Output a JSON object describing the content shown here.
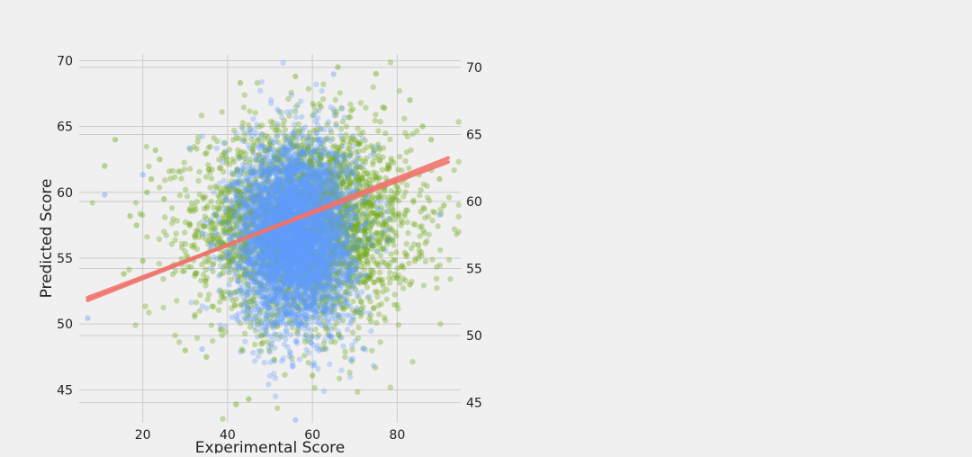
{
  "chart_data": {
    "type": "scatter",
    "title": "",
    "xlabel": "Experimental Score",
    "ylabel": "Predicted Score",
    "xlim": [
      5,
      95
    ],
    "ylim_left": [
      42.5,
      70.5
    ],
    "ylim_right": [
      43.5,
      71.0
    ],
    "x_ticks": [
      20,
      40,
      60,
      80
    ],
    "y_ticks_left": [
      45,
      50,
      55,
      60,
      65,
      70
    ],
    "y_ticks_right": [
      45,
      50,
      55,
      60,
      65,
      70
    ],
    "grid": true,
    "legend": "none",
    "series": [
      {
        "color": "#71a819",
        "opacity": 0.35,
        "axis": "left",
        "cloud": {
          "x_mean": 58,
          "x_sd": 13,
          "y_mean": 57.5,
          "y_sd": 3.6,
          "count": 3500
        },
        "outliers": [
          [
            11,
            62
          ],
          [
            13.5,
            64
          ],
          [
            15.5,
            53.8
          ],
          [
            17,
            58.2
          ],
          [
            18.5,
            57.5
          ],
          [
            20,
            54.8
          ],
          [
            21,
            60
          ],
          [
            22,
            61
          ],
          [
            23,
            63.2
          ],
          [
            24,
            62.5
          ],
          [
            25,
            59.5
          ],
          [
            43,
            68.3
          ],
          [
            56,
            68.8
          ],
          [
            66,
            69.5
          ],
          [
            75,
            69
          ],
          [
            83,
            67
          ],
          [
            86,
            65
          ],
          [
            88,
            64
          ],
          [
            90,
            61
          ],
          [
            91,
            59
          ],
          [
            42,
            43.9
          ],
          [
            45,
            44.3
          ],
          [
            51,
            47.3
          ],
          [
            60,
            46.1
          ],
          [
            30,
            48
          ],
          [
            62,
            66.5
          ],
          [
            77,
            66.4
          ],
          [
            35,
            47.5
          ],
          [
            48,
            48.5
          ],
          [
            85,
            56
          ],
          [
            83,
            53
          ]
        ]
      },
      {
        "color": "#619cff",
        "opacity": 0.3,
        "axis": "right",
        "cloud": {
          "x_mean": 56,
          "x_sd": 8,
          "y_mean": 57.5,
          "y_sd": 3.4,
          "count": 4500
        },
        "outliers": [
          [
            7,
            51.3
          ],
          [
            11,
            60.5
          ],
          [
            20,
            62
          ],
          [
            31,
            64
          ],
          [
            65,
            69.5
          ],
          [
            56,
            43.7
          ],
          [
            90,
            59
          ],
          [
            34,
            49
          ]
        ]
      }
    ],
    "regression_lines": [
      {
        "color": "#f0736a",
        "x": [
          7,
          92
        ],
        "y": [
          51.8,
          62.6
        ],
        "axis": "left"
      },
      {
        "color": "#f0736a",
        "x": [
          7,
          92
        ],
        "y": [
          52.0,
          62.3
        ],
        "axis": "left"
      }
    ]
  }
}
